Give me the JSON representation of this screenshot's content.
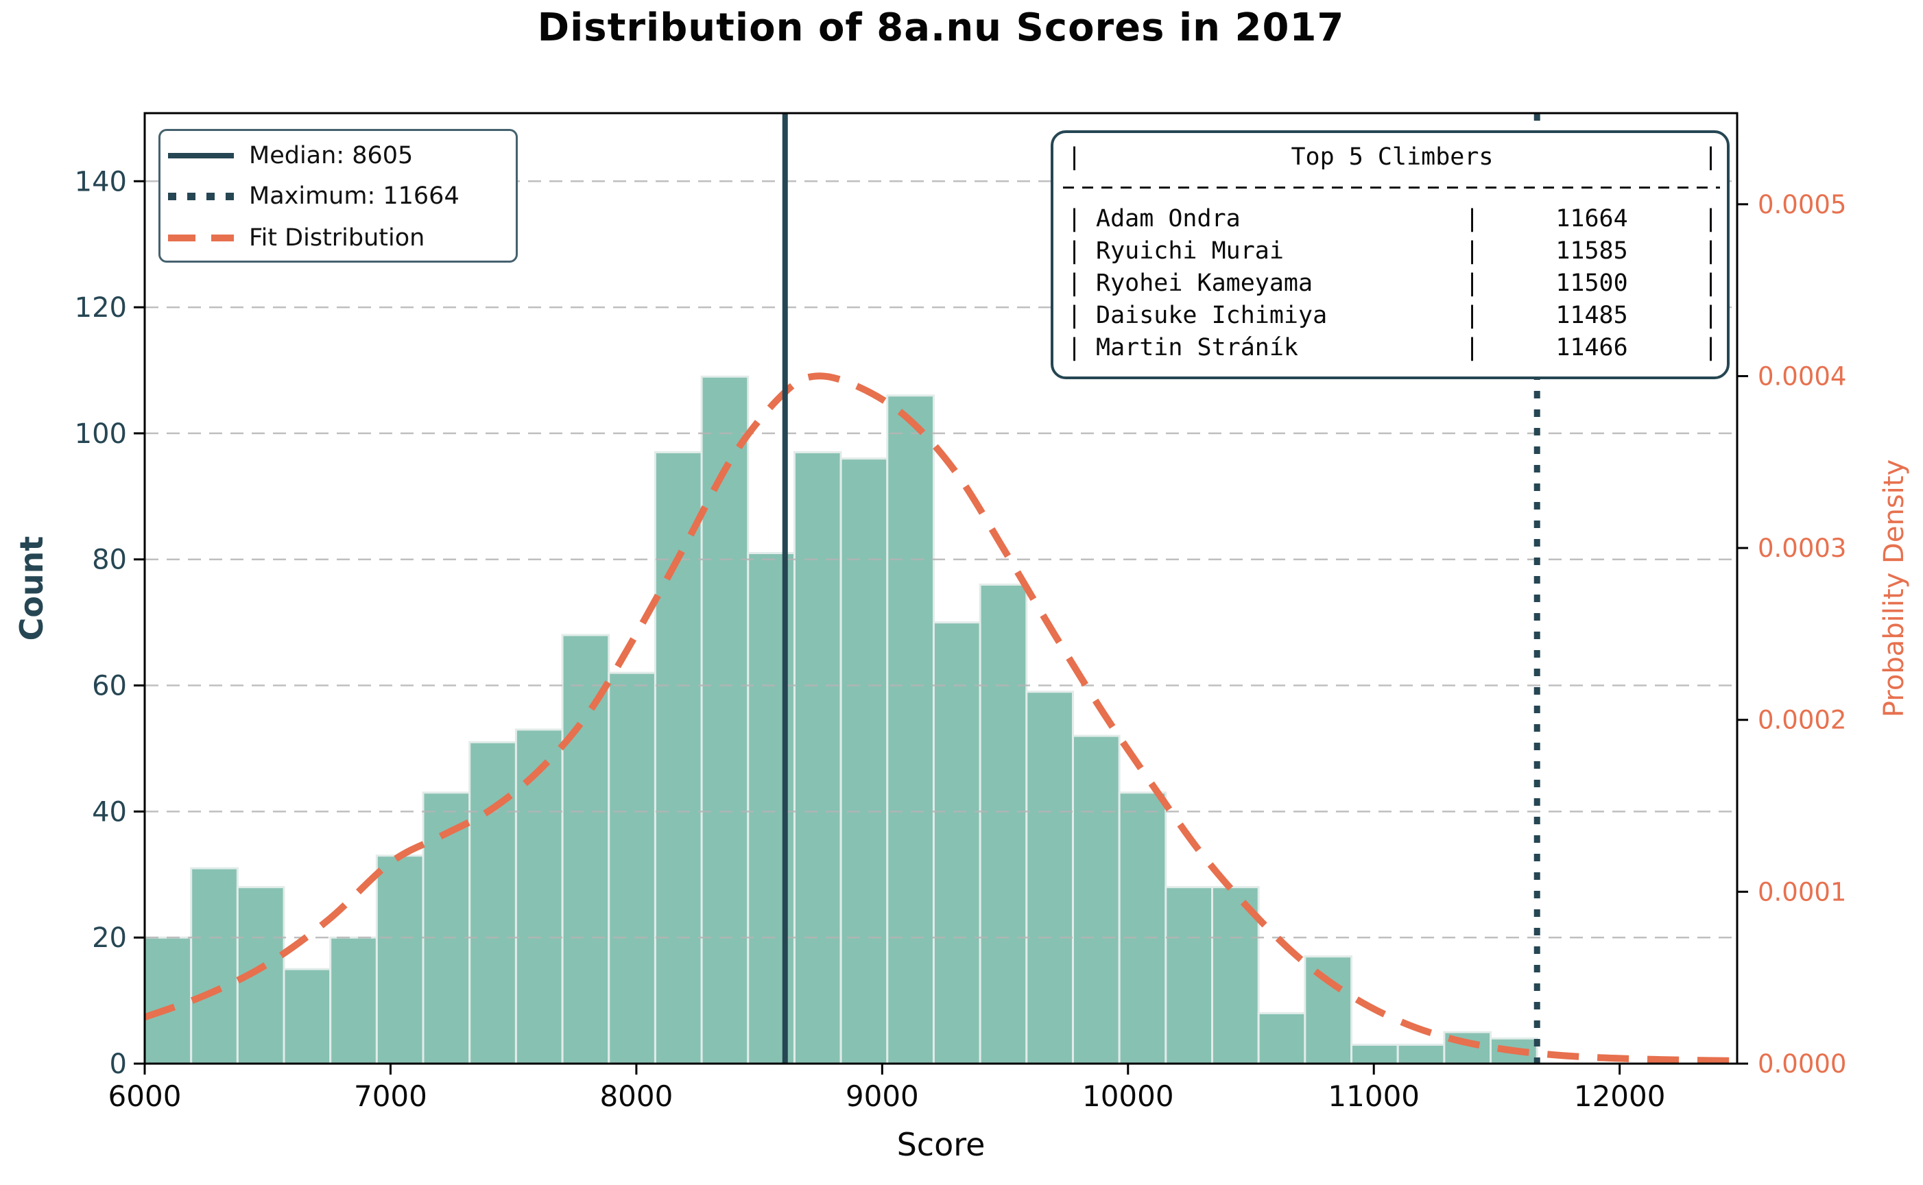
{
  "title": "Distribution of 8a.nu Scores in 2017",
  "axes": {
    "x_label": "Score",
    "y_left_label": "Count",
    "y_right_label": "Probability Density",
    "x_ticks": [
      6000,
      7000,
      8000,
      9000,
      10000,
      11000,
      12000
    ],
    "y_left_ticks": [
      0,
      20,
      40,
      60,
      80,
      100,
      120,
      140
    ],
    "y_right_tick_labels": [
      "0.0000",
      "0.0001",
      "0.0002",
      "0.0003",
      "0.0004",
      "0.0005"
    ]
  },
  "legend": {
    "median_label": "Median: 8605",
    "maximum_label": "Maximum: 11664",
    "fit_label": "Fit Distribution"
  },
  "climbers_table": {
    "title": "Top 5 Climbers",
    "pipe": "|",
    "rows": [
      {
        "name": "Adam Ondra",
        "score": "11664"
      },
      {
        "name": "Ryuichi Murai",
        "score": "11585"
      },
      {
        "name": "Ryohei Kameyama",
        "score": "11500"
      },
      {
        "name": "Daisuke Ichimiya",
        "score": "11485"
      },
      {
        "name": "Martin Stráník",
        "score": "11466"
      }
    ]
  },
  "chart_data": {
    "type": "bar",
    "subtype": "histogram-with-fit-line",
    "title": "Distribution of 8a.nu Scores in 2017",
    "xlabel": "Score",
    "ylabel_left": "Count",
    "ylabel_right": "Probability Density",
    "bin_start": 6000,
    "bin_width": 188.8,
    "counts": [
      20,
      31,
      28,
      15,
      20,
      33,
      43,
      51,
      53,
      68,
      62,
      97,
      109,
      81,
      97,
      96,
      106,
      70,
      76,
      59,
      52,
      43,
      28,
      28,
      8,
      17,
      3,
      3,
      5,
      4
    ],
    "median": 8605,
    "maximum": 11664,
    "xlim": [
      6000,
      12478
    ],
    "ylim_left": [
      0,
      150.8
    ],
    "ylim_right": [
      0,
      0.000553
    ],
    "grid": "horizontal-dashed",
    "legend_position": "upper-left",
    "fit_curve": {
      "score": [
        6000,
        6250,
        6500,
        6750,
        7000,
        7200,
        7400,
        7600,
        7800,
        8000,
        8200,
        8400,
        8600,
        8730,
        8900,
        9100,
        9300,
        9500,
        9700,
        9900,
        10100,
        10300,
        10500,
        10700,
        10900,
        11100,
        11300,
        11500,
        11700,
        11900,
        12100,
        12300,
        12478
      ],
      "density": [
        2.7e-05,
        4e-05,
        5.8e-05,
        8.4e-05,
        0.000117,
        0.000132,
        0.000147,
        0.00017,
        0.000203,
        0.00025,
        0.000302,
        0.000355,
        0.00039,
        0.0004,
        0.000394,
        0.000376,
        0.000344,
        0.000298,
        0.00025,
        0.000204,
        0.000162,
        0.000122,
        8.9e-05,
        6.1e-05,
        4e-05,
        2.5e-05,
        1.5e-05,
        9e-06,
        5.5e-06,
        3.6e-06,
        2.6e-06,
        2e-06,
        1.6e-06
      ]
    },
    "colors": {
      "bar_fill": "#87c1b2",
      "bar_edge": "#e2ece9",
      "fit_line": "#e7704e",
      "dark_line": "#264653",
      "grid_line": "#b5b5b5",
      "left_tick_label": "#264653",
      "right_tick_label": "#e7714f",
      "x_tick_label": "#0a0a0a"
    }
  }
}
